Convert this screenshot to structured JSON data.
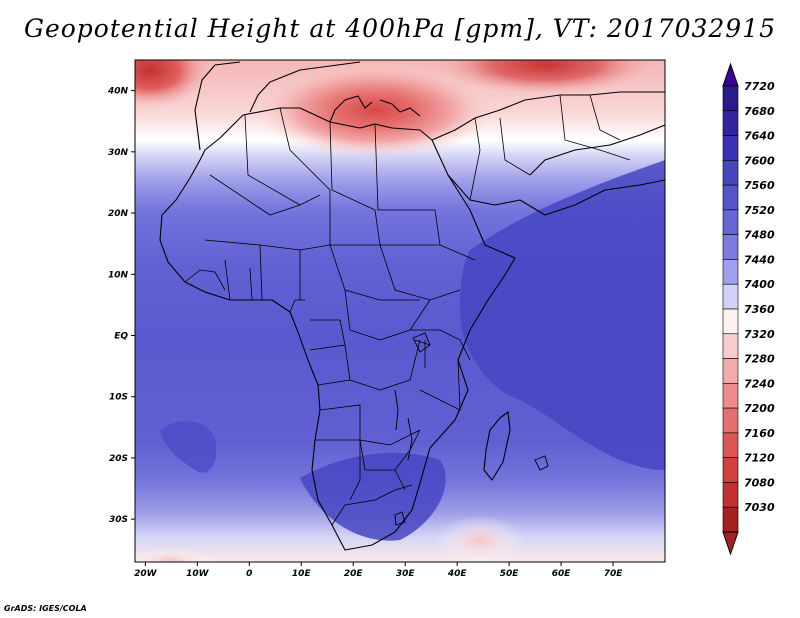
{
  "title": "Geopotential Height at 400hPa [gpm], VT: 2017032915",
  "credit": "GrADS: IGES/COLA",
  "map": {
    "lon_range": [
      -22,
      80
    ],
    "lat_range": [
      -37,
      45
    ],
    "lon_ticks": [
      {
        "value": -20,
        "label": "20W"
      },
      {
        "value": -10,
        "label": "10W"
      },
      {
        "value": 0,
        "label": "0"
      },
      {
        "value": 10,
        "label": "10E"
      },
      {
        "value": 20,
        "label": "20E"
      },
      {
        "value": 30,
        "label": "30E"
      },
      {
        "value": 40,
        "label": "40E"
      },
      {
        "value": 50,
        "label": "50E"
      },
      {
        "value": 60,
        "label": "60E"
      },
      {
        "value": 70,
        "label": "70E"
      }
    ],
    "lat_ticks": [
      {
        "value": 40,
        "label": "40N"
      },
      {
        "value": 30,
        "label": "30N"
      },
      {
        "value": 20,
        "label": "20N"
      },
      {
        "value": 10,
        "label": "10N"
      },
      {
        "value": 0,
        "label": "EQ"
      },
      {
        "value": -10,
        "label": "10S"
      },
      {
        "value": -20,
        "label": "20S"
      },
      {
        "value": -30,
        "label": "30S"
      }
    ]
  },
  "colorbar": {
    "top_color": "#3c0096",
    "bottom_color": "#a52020",
    "levels": [
      {
        "label": "7720",
        "color": "#2a1a8c"
      },
      {
        "label": "7680",
        "color": "#3226a0"
      },
      {
        "label": "7640",
        "color": "#3a32b4"
      },
      {
        "label": "7600",
        "color": "#4646c3"
      },
      {
        "label": "7560",
        "color": "#5555cc"
      },
      {
        "label": "7520",
        "color": "#6666d6"
      },
      {
        "label": "7480",
        "color": "#7b7be0"
      },
      {
        "label": "7440",
        "color": "#a0a0ec"
      },
      {
        "label": "7400",
        "color": "#d2d2f8"
      },
      {
        "label": "7360",
        "color": "#fff0f0"
      },
      {
        "label": "7320",
        "color": "#f9cccc"
      },
      {
        "label": "7280",
        "color": "#f3aaaa"
      },
      {
        "label": "7240",
        "color": "#ec8c8c"
      },
      {
        "label": "7200",
        "color": "#e66f6f"
      },
      {
        "label": "7160",
        "color": "#de5555"
      },
      {
        "label": "7120",
        "color": "#d23f3f"
      },
      {
        "label": "7080",
        "color": "#c23030"
      },
      {
        "label": "7030",
        "color": "#a52020"
      }
    ]
  }
}
